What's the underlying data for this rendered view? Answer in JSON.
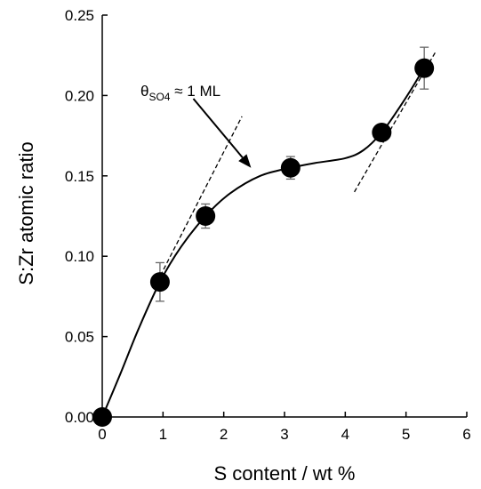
{
  "chart_data": {
    "type": "scatter",
    "title": "",
    "xlabel": "S content / wt %",
    "ylabel": "S:Zr atomic ratio",
    "xlim": [
      0,
      6
    ],
    "ylim": [
      0,
      0.25
    ],
    "xticks": [
      0,
      1,
      2,
      3,
      4,
      5,
      6
    ],
    "yticks": [
      "0.00",
      "0.05",
      "0.10",
      "0.15",
      "0.20",
      "0.25"
    ],
    "grid": false,
    "legend": "none",
    "series": [
      {
        "points": [
          {
            "x": 0,
            "y": 0,
            "err": 0
          },
          {
            "x": 0.95,
            "y": 0.084,
            "err": 0.012
          },
          {
            "x": 1.7,
            "y": 0.125,
            "err": 0.0075
          },
          {
            "x": 3.1,
            "y": 0.155,
            "err": 0.007
          },
          {
            "x": 4.6,
            "y": 0.177,
            "err": 0.005
          },
          {
            "x": 5.3,
            "y": 0.217,
            "err": 0.013
          }
        ],
        "fit_curve": [
          [
            0,
            0
          ],
          [
            0.3,
            0.027
          ],
          [
            0.6,
            0.055
          ],
          [
            0.95,
            0.084
          ],
          [
            1.3,
            0.106
          ],
          [
            1.7,
            0.125
          ],
          [
            2.1,
            0.139
          ],
          [
            2.6,
            0.15
          ],
          [
            3.1,
            0.155
          ],
          [
            3.5,
            0.158
          ],
          [
            4.0,
            0.161
          ],
          [
            4.3,
            0.166
          ],
          [
            4.6,
            0.177
          ],
          [
            4.9,
            0.193
          ],
          [
            5.2,
            0.211
          ],
          [
            5.35,
            0.222
          ]
        ]
      }
    ],
    "tangent_lines": [
      {
        "x1": 0.85,
        "y1": 0.08,
        "x2": 2.3,
        "y2": 0.187
      },
      {
        "x1": 4.15,
        "y1": 0.14,
        "x2": 5.5,
        "y2": 0.228
      }
    ],
    "annotation": {
      "theta": "θ",
      "subscript": "SO4",
      "rest": " ≈ 1 ML",
      "arrow_from": {
        "x": 1.5,
        "y": 0.198
      },
      "arrow_to": {
        "x": 2.45,
        "y": 0.155
      }
    },
    "colors": {
      "marker": "#000000",
      "curve": "#000000",
      "errorbar": "#666666"
    }
  }
}
